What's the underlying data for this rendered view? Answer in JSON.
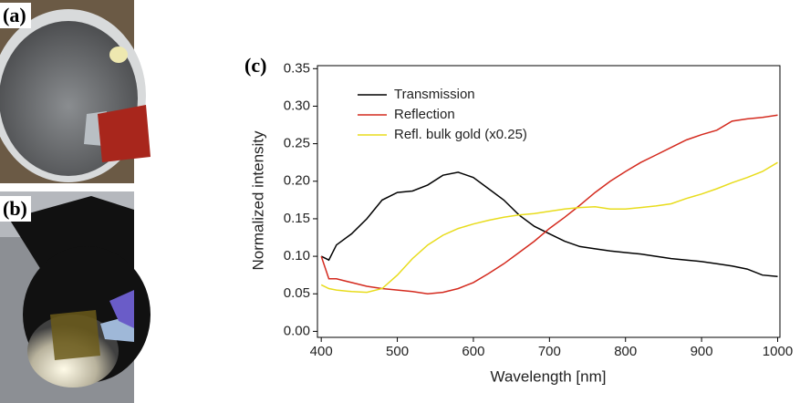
{
  "panels": {
    "a": "(a)",
    "b": "(b)",
    "c": "(c)"
  },
  "chart_data": {
    "type": "line",
    "x_label": "Wavelength [nm]",
    "y_label": "Normalized intensity",
    "x": [
      400,
      410,
      420,
      440,
      460,
      480,
      500,
      520,
      540,
      560,
      580,
      600,
      620,
      640,
      660,
      680,
      700,
      720,
      740,
      760,
      780,
      800,
      820,
      840,
      860,
      880,
      900,
      920,
      940,
      960,
      980,
      1000
    ],
    "series": [
      {
        "name": "Transmission",
        "color": "#000000",
        "values": [
          0.1,
          0.095,
          0.115,
          0.13,
          0.15,
          0.175,
          0.185,
          0.187,
          0.195,
          0.208,
          0.212,
          0.205,
          0.19,
          0.175,
          0.155,
          0.14,
          0.13,
          0.12,
          0.113,
          0.11,
          0.107,
          0.105,
          0.103,
          0.1,
          0.097,
          0.095,
          0.093,
          0.09,
          0.087,
          0.083,
          0.075,
          0.073
        ]
      },
      {
        "name": "Reflection",
        "color": "#d42a1e",
        "values": [
          0.1,
          0.07,
          0.07,
          0.065,
          0.06,
          0.057,
          0.055,
          0.053,
          0.05,
          0.052,
          0.057,
          0.065,
          0.077,
          0.09,
          0.105,
          0.12,
          0.137,
          0.152,
          0.168,
          0.185,
          0.2,
          0.213,
          0.225,
          0.235,
          0.245,
          0.255,
          0.262,
          0.268,
          0.28,
          0.283,
          0.285,
          0.288
        ]
      },
      {
        "name": "Refl. bulk gold (x0.25)",
        "color": "#e8dc1c",
        "values": [
          0.062,
          0.057,
          0.055,
          0.053,
          0.052,
          0.057,
          0.075,
          0.097,
          0.115,
          0.128,
          0.137,
          0.143,
          0.148,
          0.152,
          0.155,
          0.157,
          0.16,
          0.163,
          0.165,
          0.166,
          0.163,
          0.163,
          0.165,
          0.167,
          0.17,
          0.177,
          0.183,
          0.19,
          0.198,
          0.205,
          0.213,
          0.225
        ]
      }
    ],
    "xlim": [
      395,
      1003
    ],
    "ylim": [
      -0.008,
      0.354
    ],
    "xticks": [
      400,
      500,
      600,
      700,
      800,
      900,
      1000
    ],
    "yticks": [
      {
        "value": 0,
        "label": "0.00"
      },
      0.05,
      {
        "value": 0.1,
        "label": "0.10"
      },
      0.15,
      {
        "value": 0.2,
        "label": "0.20"
      },
      0.25,
      {
        "value": 0.3,
        "label": "0.30"
      },
      0.35
    ],
    "legend": "upper left"
  }
}
